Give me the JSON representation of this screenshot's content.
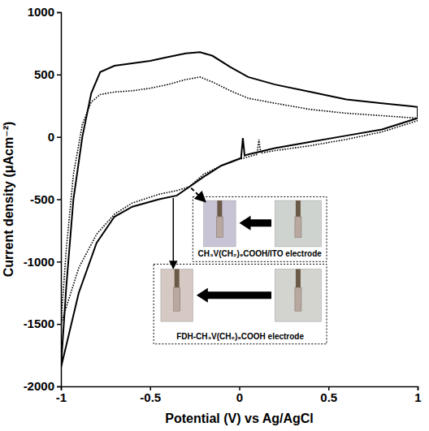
{
  "chart_data": {
    "type": "line",
    "xlabel": "Potential (V) vs Ag/AgCl",
    "ylabel": "Current density (μAcm⁻²)",
    "xlim": [
      -1,
      1
    ],
    "xticks": [
      -1,
      -0.5,
      0,
      0.5,
      1
    ],
    "ylim": [
      -2000,
      1000
    ],
    "yticks": [
      -2000,
      -1500,
      -1000,
      -500,
      0,
      500,
      1000
    ],
    "grid": false,
    "series": [
      {
        "name": "FDH-CH₃V(CH₂)₉COOH electrode",
        "color": "#000000",
        "line_style": "solid",
        "x": [
          -1,
          -0.97,
          -0.93,
          -0.88,
          -0.83,
          -0.78,
          -0.7,
          -0.6,
          -0.5,
          -0.4,
          -0.3,
          -0.22,
          -0.15,
          -0.05,
          0.05,
          0.2,
          0.4,
          0.6,
          0.8,
          1,
          1,
          0.8,
          0.6,
          0.4,
          0.2,
          0.05,
          0.03,
          0.02,
          0.01,
          -0.1,
          -0.2,
          -0.3,
          -0.35,
          -0.45,
          -0.6,
          -0.7,
          -0.8,
          -0.9,
          -1
        ],
        "values": [
          -1850,
          -1200,
          -500,
          0,
          350,
          520,
          570,
          590,
          610,
          640,
          670,
          680,
          650,
          560,
          480,
          420,
          360,
          300,
          270,
          240,
          150,
          60,
          10,
          -40,
          -90,
          -140,
          -150,
          -10,
          -170,
          -230,
          -320,
          -420,
          -470,
          -500,
          -560,
          -640,
          -850,
          -1250,
          -1850
        ]
      },
      {
        "name": "CH₃V(CH₂)₉COOH/ITO electrode",
        "color": "#000000",
        "line_style": "dotted",
        "x": [
          -1,
          -0.97,
          -0.93,
          -0.88,
          -0.83,
          -0.78,
          -0.7,
          -0.6,
          -0.5,
          -0.4,
          -0.3,
          -0.22,
          -0.15,
          -0.05,
          0.05,
          0.2,
          0.4,
          0.6,
          0.8,
          1,
          1,
          0.8,
          0.6,
          0.4,
          0.2,
          0.12,
          0.11,
          0.1,
          0,
          -0.1,
          -0.2,
          -0.28,
          -0.35,
          -0.45,
          -0.6,
          -0.7,
          -0.8,
          -0.9,
          -1
        ],
        "values": [
          -1500,
          -900,
          -300,
          100,
          280,
          340,
          360,
          370,
          390,
          420,
          460,
          480,
          440,
          370,
          310,
          270,
          220,
          190,
          170,
          150,
          130,
          40,
          -20,
          -70,
          -110,
          -130,
          -20,
          -140,
          -180,
          -230,
          -300,
          -400,
          -430,
          -460,
          -530,
          -620,
          -780,
          -1050,
          -1500
        ]
      }
    ]
  }
}
